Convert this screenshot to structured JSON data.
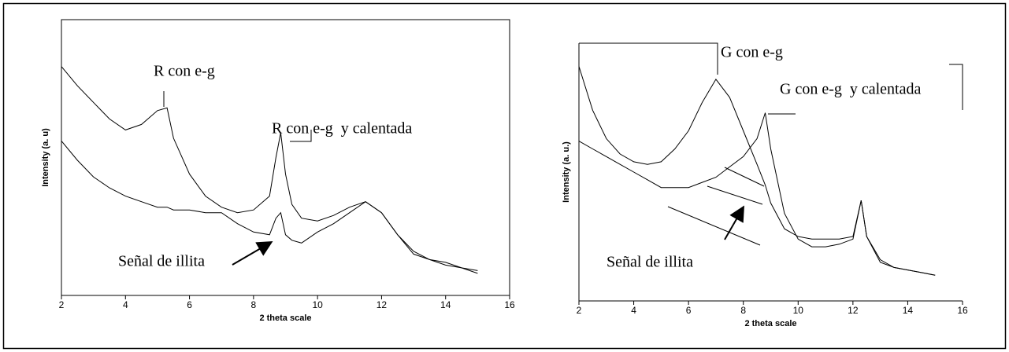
{
  "chart_data": [
    {
      "type": "line",
      "x_label": "2 theta scale",
      "y_label": "Intensity (a. u)",
      "annotations": [
        "R con e-g",
        "R con e-g  y calentada",
        "Señal de illita"
      ],
      "x": [
        2,
        2.5,
        3,
        3.5,
        4,
        4.5,
        5,
        5.3,
        5.5,
        6,
        6.5,
        7,
        7.5,
        8,
        8.5,
        8.7,
        8.85,
        9,
        9.2,
        9.5,
        10,
        10.5,
        11,
        11.5,
        12,
        12.5,
        13,
        13.5,
        14,
        14.5,
        15
      ],
      "series": [
        {
          "color": "#000000",
          "values": [
            83,
            76,
            70,
            64,
            60,
            62,
            67,
            68,
            57,
            44,
            36,
            32,
            30,
            31,
            36,
            50,
            59,
            44,
            33,
            28,
            27,
            29,
            32,
            34,
            30,
            22,
            16,
            13,
            12,
            10,
            9
          ]
        },
        {
          "color": "#000000",
          "values": [
            56,
            49,
            43,
            39,
            36,
            34,
            32,
            32,
            31,
            31,
            30,
            30,
            26,
            23,
            22,
            28,
            30,
            22,
            20,
            19,
            23,
            26,
            30,
            34,
            30,
            22,
            15,
            13,
            11,
            10,
            8
          ]
        }
      ],
      "xlim": [
        2,
        16
      ],
      "xticks": [
        2,
        4,
        6,
        8,
        10,
        12,
        14,
        16
      ],
      "ylim": [
        0,
        100
      ],
      "frame": "box"
    },
    {
      "type": "line",
      "x_label": "2 theta scale",
      "y_label": "Intensity (a. u.)",
      "annotations": [
        "G con e-g",
        "G con e-g  y calentada",
        "Señal de illita"
      ],
      "x": [
        2,
        2.5,
        3,
        3.5,
        4,
        4.5,
        5,
        5.5,
        6,
        6.5,
        7,
        7.5,
        8,
        8.5,
        8.8,
        9,
        9.5,
        10,
        10.5,
        11,
        11.5,
        12,
        12.3,
        12.5,
        13,
        13.5,
        14,
        14.5,
        15
      ],
      "series": [
        {
          "color": "#000000",
          "values": [
            91,
            74,
            63,
            57,
            54,
            53,
            54,
            59,
            66,
            77,
            86,
            79,
            66,
            53,
            45,
            38,
            28,
            25,
            24,
            24,
            24,
            25,
            39,
            25,
            16,
            13,
            12,
            11,
            10
          ]
        },
        {
          "color": "#000000",
          "values": [
            62,
            59,
            56,
            53,
            50,
            47,
            44,
            44,
            44,
            46,
            48,
            52,
            56,
            63,
            73,
            59,
            34,
            24,
            21,
            21,
            22,
            24,
            39,
            25,
            15,
            13,
            12,
            11,
            10
          ]
        }
      ],
      "xlim": [
        2,
        16
      ],
      "xticks": [
        2,
        4,
        6,
        8,
        10,
        12,
        14,
        16
      ],
      "ylim": [
        0,
        100
      ],
      "frame": "axes"
    }
  ]
}
